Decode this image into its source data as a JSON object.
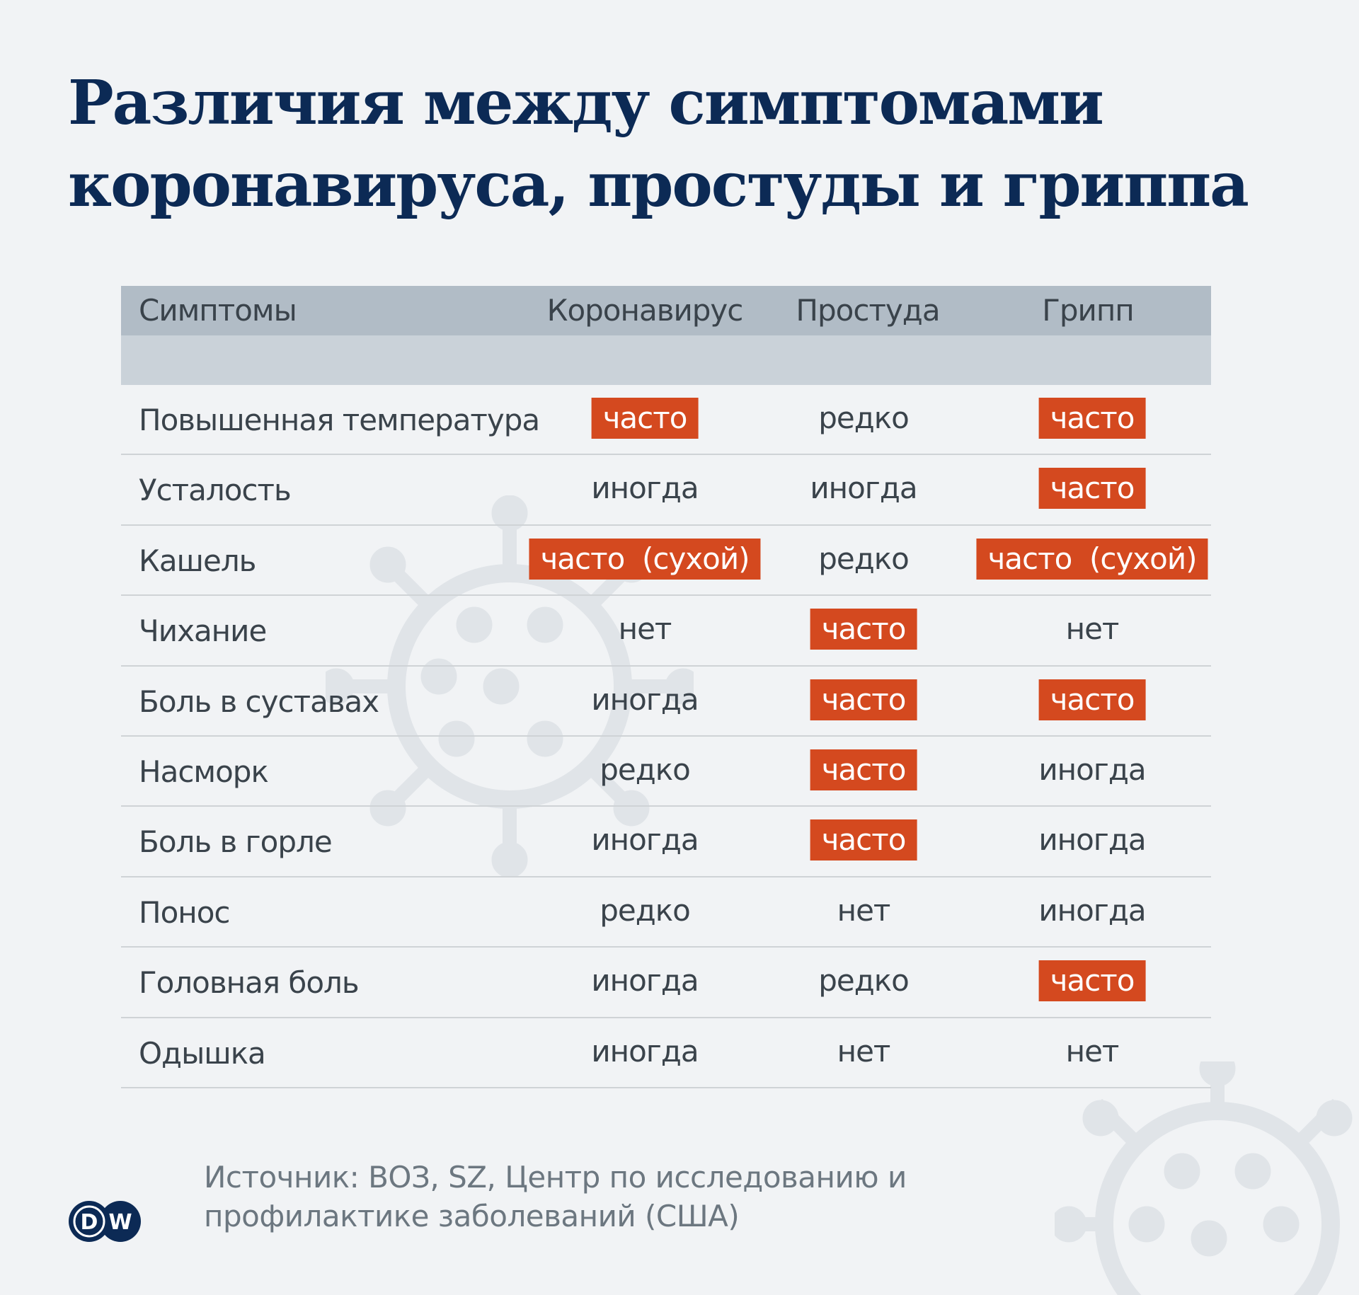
{
  "title": [
    "Различия между симптомами",
    "коронавируса, простуды и гриппа"
  ],
  "table": {
    "headers": [
      "Симптомы",
      "Коронавирус",
      "Простуда",
      "Грипп"
    ],
    "rows": [
      {
        "symptom": "Повышенная температура",
        "values": [
          "часто",
          "редко",
          "часто"
        ],
        "highlight": [
          true,
          false,
          true
        ]
      },
      {
        "symptom": "Усталость",
        "values": [
          "иногда",
          "иногда",
          "часто"
        ],
        "highlight": [
          false,
          false,
          true
        ]
      },
      {
        "symptom": "Кашель",
        "values": [
          "часто  (сухой)",
          "редко",
          "часто  (сухой)"
        ],
        "highlight": [
          true,
          false,
          true
        ]
      },
      {
        "symptom": "Чихание",
        "values": [
          "нет",
          "часто",
          "нет"
        ],
        "highlight": [
          false,
          true,
          false
        ]
      },
      {
        "symptom": "Боль в суставах",
        "values": [
          "иногда",
          "часто",
          "часто"
        ],
        "highlight": [
          false,
          true,
          true
        ]
      },
      {
        "symptom": "Насморк",
        "values": [
          "редко",
          "часто",
          "иногда"
        ],
        "highlight": [
          false,
          true,
          false
        ]
      },
      {
        "symptom": "Боль в горле",
        "values": [
          "иногда",
          "часто",
          "иногда"
        ],
        "highlight": [
          false,
          true,
          false
        ]
      },
      {
        "symptom": "Понос",
        "values": [
          "редко",
          "нет",
          "иногда"
        ],
        "highlight": [
          false,
          false,
          false
        ]
      },
      {
        "symptom": "Головная боль",
        "values": [
          "иногда",
          "редко",
          "часто"
        ],
        "highlight": [
          false,
          false,
          true
        ]
      },
      {
        "symptom": "Одышка",
        "values": [
          "иногда",
          "нет",
          "нет"
        ],
        "highlight": [
          false,
          false,
          false
        ]
      }
    ]
  },
  "footer": {
    "source_lines": [
      "Источник: ВОЗ, SZ, Центр по исследованию и",
      "профилактике заболеваний (США)"
    ]
  },
  "logo": {
    "text": "DW",
    "icon": "dw-logo"
  },
  "colors": {
    "title": "#0c2a55",
    "highlight": "#d4491f",
    "header": "#b1bcc6",
    "subheader": "#cad2d9",
    "background": "#f1f3f5"
  }
}
